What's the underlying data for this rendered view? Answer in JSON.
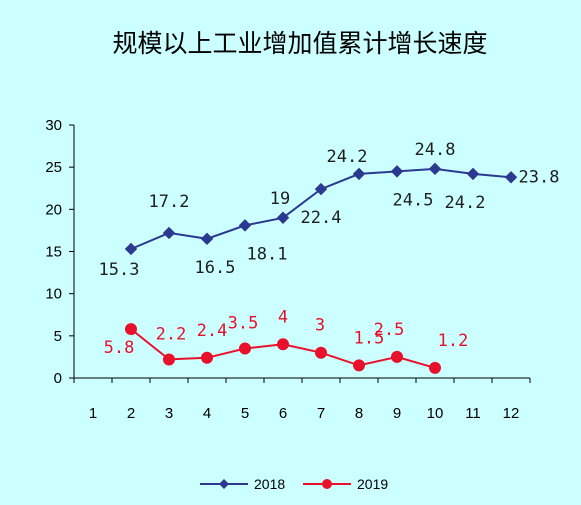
{
  "chart_data": {
    "type": "line",
    "title": "规模以上工业增加值累计增长速度",
    "xlabel": "",
    "ylabel": "",
    "categories": [
      "1",
      "2",
      "3",
      "4",
      "5",
      "6",
      "7",
      "8",
      "9",
      "10",
      "11",
      "12"
    ],
    "ylim": [
      0,
      30
    ],
    "yticks": [
      "0",
      "5",
      "10",
      "15",
      "20",
      "25",
      "30"
    ],
    "grid": false,
    "legend_position": "bottom",
    "series": [
      {
        "name": "2018",
        "color": "#2b3990",
        "marker": "diamond",
        "values": [
          null,
          15.3,
          17.2,
          16.5,
          18.1,
          19,
          22.4,
          24.2,
          24.5,
          24.8,
          24.2,
          23.8
        ],
        "labels": [
          "",
          "15.3",
          "17.2",
          "16.5",
          "18.1",
          "19",
          "22.4",
          "24.2",
          "24.5",
          "24.8",
          "24.2",
          "23.8"
        ]
      },
      {
        "name": "2019",
        "color": "#e8102a",
        "marker": "circle",
        "values": [
          null,
          5.8,
          2.2,
          2.4,
          3.5,
          4,
          3,
          1.5,
          2.5,
          1.2,
          null,
          null
        ],
        "labels": [
          "",
          "5.8",
          "2.2",
          "2.4",
          "3.5",
          "4",
          "3",
          "1.5",
          "2.5",
          "1.2",
          "",
          ""
        ]
      }
    ]
  }
}
